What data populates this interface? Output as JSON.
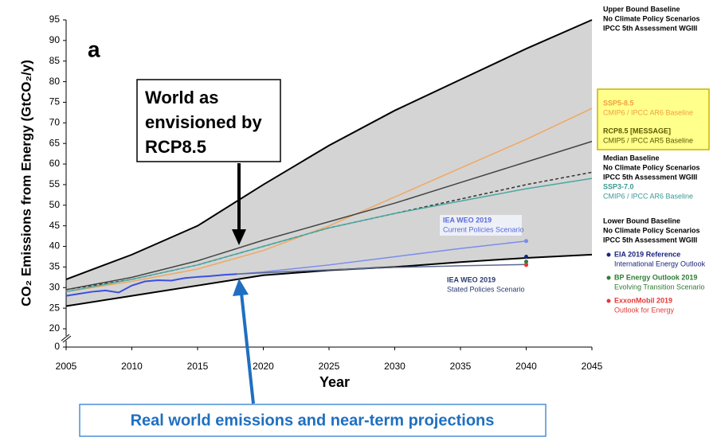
{
  "chart_data": {
    "type": "line",
    "panel_label": "a",
    "x_label": "Year",
    "y_label": "CO₂ Emissions from Energy (GtCO₂/y)",
    "xlim": [
      2005,
      2045
    ],
    "xticks": [
      2005,
      2010,
      2015,
      2020,
      2025,
      2030,
      2035,
      2040,
      2045
    ],
    "ylim": [
      0,
      95
    ],
    "y_break": [
      0,
      20
    ],
    "yticks": [
      0,
      20,
      25,
      30,
      35,
      40,
      45,
      50,
      55,
      60,
      65,
      70,
      75,
      80,
      85,
      90,
      95
    ],
    "band_color": "#d4d4d4",
    "annotations": {
      "rcp_box": [
        "World as",
        "envisioned by",
        "RCP8.5"
      ],
      "real_world_box": "Real world emissions and near-term projections"
    },
    "series": [
      {
        "name": "Upper Bound Baseline",
        "description": [
          "No Climate Policy Scenarios",
          "IPCC 5th Assessment WGIII"
        ],
        "band_edge": "upper",
        "color": "#000000",
        "text_color": "#000000",
        "x": [
          2005,
          2010,
          2015,
          2020,
          2025,
          2030,
          2035,
          2040,
          2045
        ],
        "values": [
          32,
          38,
          45,
          55,
          64.5,
          73,
          80.5,
          88,
          95
        ]
      },
      {
        "name": "SSP5-8.5",
        "description": [
          "CMIP6 / IPCC AR6 Baseline"
        ],
        "color": "#f0a860",
        "text_color": "#f0a040",
        "x": [
          2005,
          2010,
          2015,
          2020,
          2025,
          2030,
          2035,
          2040,
          2045
        ],
        "values": [
          29,
          31.5,
          34.5,
          39,
          45,
          52,
          59,
          66,
          73.5
        ]
      },
      {
        "name": "RCP8.5 [MESSAGE]",
        "description": [
          "CMIP5 / IPCC AR5 Baseline"
        ],
        "dashed": true,
        "color": "#333333",
        "text_color": "#5a5a00",
        "x": [
          2005,
          2010,
          2015,
          2020,
          2025,
          2030,
          2035,
          2040,
          2045
        ],
        "values": [
          29.5,
          32,
          35.5,
          40,
          44.5,
          48,
          51.5,
          55,
          58
        ]
      },
      {
        "name": "Median Baseline",
        "description": [
          "No Climate Policy Scenarios",
          "IPCC 5th Assessment WGIII"
        ],
        "color": "#444444",
        "text_color": "#000000",
        "x": [
          2005,
          2010,
          2015,
          2020,
          2025,
          2030,
          2035,
          2040,
          2045
        ],
        "values": [
          29.5,
          32.5,
          36.5,
          41.5,
          46,
          50.5,
          55.5,
          60.5,
          65.5
        ]
      },
      {
        "name": "SSP3-7.0",
        "description": [
          "CMIP6 / IPCC AR6 Baseline"
        ],
        "color": "#4aa8a0",
        "text_color": "#3a9890",
        "x": [
          2005,
          2010,
          2015,
          2020,
          2025,
          2030,
          2035,
          2040,
          2045
        ],
        "values": [
          29,
          32,
          35.5,
          40,
          44.5,
          48,
          51,
          54,
          56.5
        ]
      },
      {
        "name": "Lower Bound Baseline",
        "description": [
          "No Climate Policy Scenarios",
          "IPCC 5th Assessment WGIII"
        ],
        "band_edge": "lower",
        "color": "#000000",
        "text_color": "#000000",
        "x": [
          2005,
          2010,
          2015,
          2020,
          2025,
          2030,
          2035,
          2040,
          2045
        ],
        "values": [
          25.5,
          28,
          30.5,
          33,
          34.2,
          35,
          36.2,
          37.2,
          38
        ]
      },
      {
        "color": "#3a4fe0",
        "x": [
          2005,
          2006,
          2007,
          2008,
          2009,
          2010,
          2011,
          2012,
          2013,
          2014,
          2015,
          2016,
          2017,
          2018
        ],
        "values": [
          28,
          28.5,
          29,
          29.3,
          28.8,
          30.5,
          31.5,
          31.8,
          31.7,
          32.3,
          32.6,
          32.8,
          33.1,
          33.3
        ]
      },
      {
        "name": "IEA WEO 2019",
        "description": [
          "Current Policies Scenario"
        ],
        "inline": true,
        "color": "#7b8cf0",
        "text_color": "#5a6bd8",
        "x": [
          2018,
          2020,
          2025,
          2030,
          2035,
          2040
        ],
        "values": [
          33.3,
          33.8,
          35.5,
          37.5,
          39.5,
          41.3
        ]
      },
      {
        "name": "IEA WEO 2019",
        "description": [
          "Stated Policies Scenario"
        ],
        "inline": true,
        "color": "#5a6890",
        "text_color": "#2a3a70",
        "x": [
          2018,
          2020,
          2025,
          2030,
          2035,
          2040
        ],
        "values": [
          33.3,
          33.6,
          34.3,
          34.9,
          35.3,
          35.6
        ]
      },
      {
        "name": "EIA 2019 Reference",
        "description": [
          "International Energy Outlook"
        ],
        "marker": true,
        "color": "#1a237e",
        "text_color": "#1a237e",
        "x": [
          2040
        ],
        "values": [
          37.5
        ]
      },
      {
        "name": "BP Energy Outlook 2019",
        "description": [
          "Evolving Transition Scenario"
        ],
        "marker": true,
        "color": "#2e7d32",
        "text_color": "#2e7d32",
        "x": [
          2040
        ],
        "values": [
          36.3
        ]
      },
      {
        "name": "ExxonMobil 2019",
        "description": [
          "Outlook for Energy"
        ],
        "marker": true,
        "color": "#e53935",
        "text_color": "#e53935",
        "x": [
          2040
        ],
        "values": [
          35.5
        ]
      }
    ]
  }
}
